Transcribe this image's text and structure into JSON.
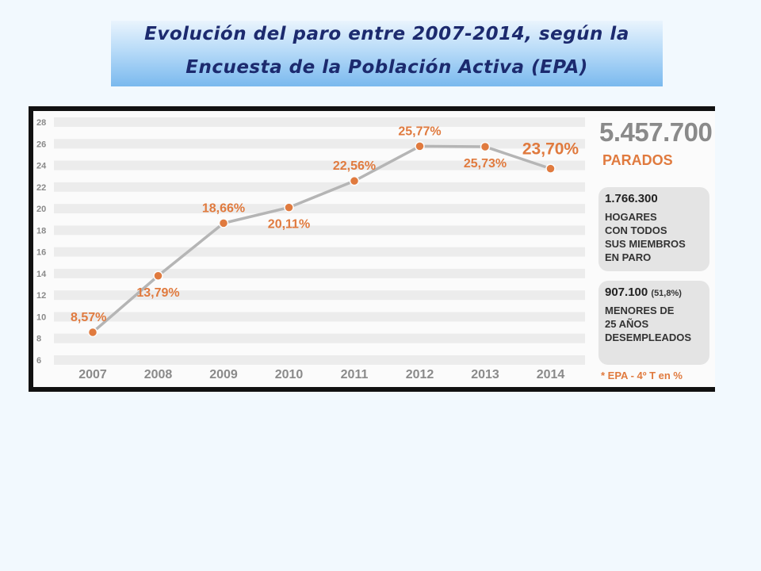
{
  "title": {
    "line1": "Evolución del paro entre  2007-2014, según la",
    "line2": "Encuesta de la Población Activa (EPA)"
  },
  "chart_data": {
    "type": "line",
    "categories": [
      "2007",
      "2008",
      "2009",
      "2010",
      "2011",
      "2012",
      "2013",
      "2014"
    ],
    "values": [
      8.57,
      13.79,
      18.66,
      20.11,
      22.56,
      25.77,
      25.73,
      23.7
    ],
    "labels": [
      "8,57%",
      "13,79%",
      "18,66%",
      "20,11%",
      "22,56%",
      "25,77%",
      "25,73%",
      "23,70%"
    ],
    "label_placement": [
      "above",
      "below",
      "above",
      "below",
      "above",
      "above",
      "below",
      "above"
    ],
    "yticks": [
      6,
      8,
      10,
      12,
      14,
      16,
      18,
      20,
      22,
      24,
      26,
      28
    ],
    "ylim": [
      6,
      28
    ],
    "colors": {
      "line": "#b5b5b5",
      "marker": "#e07a3e",
      "label": "#e07a3e",
      "tick": "#8a8a8a"
    }
  },
  "sidebar": {
    "total": "5.457.700",
    "total_label": "PARADOS",
    "box1_number": "1.766.300",
    "box1_text": "HOGARES\nCON TODOS\nSUS MIEMBROS\nEN PARO",
    "box2_number": "907.100",
    "box2_pct": "(51,8%)",
    "box2_text": "MENORES DE\n25 AÑOS\nDESEMPLEADOS",
    "footnote": "* EPA - 4º T en %"
  }
}
